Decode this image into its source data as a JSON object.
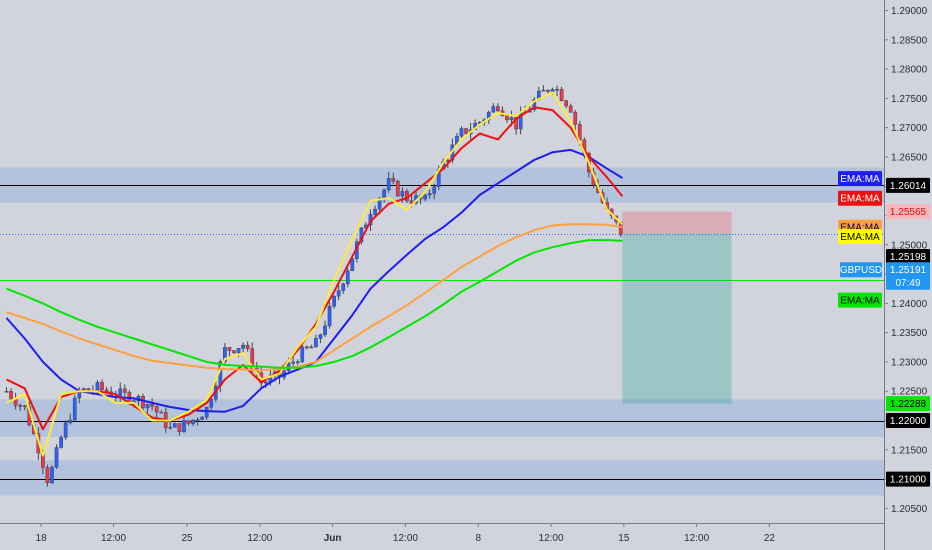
{
  "chart_data": {
    "type": "candlestick",
    "symbol": "GBPUSD",
    "y_range": [
      1.2025,
      1.2918
    ],
    "y_ticks": [
      "1.29000",
      "1.28500",
      "1.28000",
      "1.27500",
      "1.27000",
      "1.26500",
      "1.26000",
      "1.25500",
      "1.25000",
      "1.24500",
      "1.24000",
      "1.23500",
      "1.23000",
      "1.22500",
      "1.22000",
      "1.21500",
      "1.21000",
      "1.20500"
    ],
    "x_ticks": [
      "18",
      "12:00",
      "25",
      "12:00",
      "Jun",
      "12:00",
      "8",
      "12:00",
      "15",
      "12:00",
      "22"
    ],
    "x_tick_sessions": [
      0.95,
      2.94,
      4.96,
      6.96,
      8.96,
      10.96,
      12.96,
      14.96,
      16.96,
      18.96,
      20.96
    ],
    "last_session": 16.96,
    "horizontal_levels": [
      {
        "price": 1.26014,
        "label": "1.26014",
        "color": "#000000",
        "style": "solid"
      },
      {
        "price": 1.22,
        "label": "1.22000",
        "color": "#000000",
        "style": "solid"
      },
      {
        "price": 1.21,
        "label": "1.21000",
        "color": "#000000",
        "style": "solid"
      },
      {
        "price": 1.244,
        "label": "",
        "color": "#00e600",
        "style": "solid"
      },
      {
        "price": 1.25191,
        "label": "",
        "color": "#2962ff",
        "style": "dotted"
      }
    ],
    "zones": [
      {
        "from": 1.2572,
        "to": 1.2632
      },
      {
        "from": 1.2172,
        "to": 1.2236
      },
      {
        "from": 1.2072,
        "to": 1.2132
      }
    ],
    "position": {
      "entry": 1.25191,
      "stop": 1.25565,
      "target": 1.22288,
      "start_session": 16.92,
      "end_session": 19.92,
      "risk_color": "#f23645",
      "reward_color": "#089981"
    },
    "price_labels": [
      {
        "text": "EMA:MA",
        "price": 1.2613,
        "bg": "#1e1ef0",
        "fg": "#ffffff"
      },
      {
        "text": "1.26014",
        "price": 1.26014,
        "bg": "#000000",
        "fg": "#ffffff"
      },
      {
        "text": "EMA:MA",
        "price": 1.25795,
        "bg": "#ee1111",
        "fg": "#ffffff"
      },
      {
        "text": "1.25565",
        "price": 1.25565,
        "bg": "#f7b6bc",
        "fg": "#d01010"
      },
      {
        "text": "EMA:MA",
        "price": 1.253,
        "bg": "#ffa040",
        "fg": "#000000"
      },
      {
        "text": "EMA:MA",
        "price": 1.2514,
        "bg": "#ffff00",
        "fg": "#000000"
      },
      {
        "text": "1.25198",
        "price": 1.248,
        "bg": "#000000",
        "fg": "#ffffff"
      },
      {
        "text": "GBPUSD",
        "price": 1.24575,
        "bg": "#2196f3",
        "fg": "#ffffff"
      },
      {
        "text": "1.25191",
        "price": 1.24575,
        "bg": "#2196f3",
        "fg": "#ffffff"
      },
      {
        "text": "07:49",
        "price": 1.2436,
        "bg": "#2196f3",
        "fg": "#ffffff"
      },
      {
        "text": "EMA:MA",
        "price": 1.24055,
        "bg": "#00e600",
        "fg": "#000000"
      },
      {
        "text": "1.22288",
        "price": 1.22288,
        "bg": "#00e600",
        "fg": "#000000"
      },
      {
        "text": "1.22000",
        "price": 1.22,
        "bg": "#000000",
        "fg": "#ffffff"
      },
      {
        "text": "1.21000",
        "price": 1.21,
        "bg": "#000000",
        "fg": "#ffffff"
      }
    ],
    "ema_series": [
      {
        "color": "#1e1ef0",
        "points": [
          [
            0,
            1.2375
          ],
          [
            0.5,
            1.234
          ],
          [
            1,
            1.23
          ],
          [
            1.5,
            1.227
          ],
          [
            2,
            1.225
          ],
          [
            2.5,
            1.2245
          ],
          [
            3,
            1.224
          ],
          [
            3.5,
            1.2238
          ],
          [
            4,
            1.223
          ],
          [
            4.5,
            1.2223
          ],
          [
            5,
            1.2218
          ],
          [
            5.5,
            1.2216
          ],
          [
            6,
            1.2215
          ],
          [
            6.5,
            1.2225
          ],
          [
            7,
            1.2255
          ],
          [
            7.5,
            1.2275
          ],
          [
            8,
            1.2287
          ],
          [
            8.5,
            1.23
          ],
          [
            9,
            1.234
          ],
          [
            9.5,
            1.238
          ],
          [
            10,
            1.2425
          ],
          [
            10.5,
            1.2455
          ],
          [
            11,
            1.2483
          ],
          [
            11.5,
            1.251
          ],
          [
            12,
            1.253
          ],
          [
            12.5,
            1.2555
          ],
          [
            13,
            1.2585
          ],
          [
            13.5,
            1.2605
          ],
          [
            14,
            1.2625
          ],
          [
            14.5,
            1.2645
          ],
          [
            15,
            1.2658
          ],
          [
            15.5,
            1.2662
          ],
          [
            16,
            1.265
          ],
          [
            16.5,
            1.263
          ],
          [
            16.92,
            1.2614
          ]
        ]
      },
      {
        "color": "#ee1111",
        "points": [
          [
            0,
            1.227
          ],
          [
            0.5,
            1.2255
          ],
          [
            1,
            1.2185
          ],
          [
            1.5,
            1.224
          ],
          [
            2,
            1.225
          ],
          [
            2.5,
            1.225
          ],
          [
            3,
            1.2245
          ],
          [
            3.5,
            1.2225
          ],
          [
            4,
            1.2205
          ],
          [
            4.5,
            1.22
          ],
          [
            5,
            1.221
          ],
          [
            5.5,
            1.223
          ],
          [
            6,
            1.227
          ],
          [
            6.5,
            1.2295
          ],
          [
            7,
            1.2265
          ],
          [
            7.5,
            1.2285
          ],
          [
            8,
            1.232
          ],
          [
            8.5,
            1.2365
          ],
          [
            9,
            1.242
          ],
          [
            9.5,
            1.248
          ],
          [
            10,
            1.254
          ],
          [
            10.5,
            1.257
          ],
          [
            11,
            1.258
          ],
          [
            11.5,
            1.2605
          ],
          [
            12,
            1.263
          ],
          [
            12.5,
            1.2665
          ],
          [
            13,
            1.269
          ],
          [
            13.5,
            1.268
          ],
          [
            14,
            1.2715
          ],
          [
            14.5,
            1.2735
          ],
          [
            15,
            1.273
          ],
          [
            15.5,
            1.27
          ],
          [
            16,
            1.265
          ],
          [
            16.5,
            1.2615
          ],
          [
            16.92,
            1.2583
          ]
        ]
      },
      {
        "color": "#ffeb3b",
        "points": [
          [
            0,
            1.223
          ],
          [
            0.5,
            1.2245
          ],
          [
            1,
            1.214
          ],
          [
            1.5,
            1.2245
          ],
          [
            2,
            1.225
          ],
          [
            2.5,
            1.225
          ],
          [
            3,
            1.223
          ],
          [
            3.5,
            1.223
          ],
          [
            4,
            1.22
          ],
          [
            4.5,
            1.22
          ],
          [
            5,
            1.2215
          ],
          [
            5.5,
            1.2235
          ],
          [
            6,
            1.2305
          ],
          [
            6.5,
            1.2315
          ],
          [
            7,
            1.227
          ],
          [
            7.5,
            1.228
          ],
          [
            8,
            1.2325
          ],
          [
            8.5,
            1.236
          ],
          [
            9,
            1.244
          ],
          [
            9.5,
            1.251
          ],
          [
            10,
            1.2575
          ],
          [
            10.5,
            1.258
          ],
          [
            11,
            1.256
          ],
          [
            11.5,
            1.259
          ],
          [
            12,
            1.264
          ],
          [
            12.5,
            1.268
          ],
          [
            13,
            1.2705
          ],
          [
            13.5,
            1.2725
          ],
          [
            14,
            1.272
          ],
          [
            14.5,
            1.2745
          ],
          [
            15,
            1.276
          ],
          [
            15.5,
            1.271
          ],
          [
            16,
            1.264
          ],
          [
            16.5,
            1.256
          ],
          [
            16.92,
            1.2535
          ]
        ]
      },
      {
        "color": "#ffa040",
        "points": [
          [
            0,
            1.2385
          ],
          [
            0.5,
            1.2375
          ],
          [
            1,
            1.2365
          ],
          [
            1.5,
            1.2352
          ],
          [
            2,
            1.234
          ],
          [
            2.5,
            1.233
          ],
          [
            3,
            1.232
          ],
          [
            3.5,
            1.231
          ],
          [
            4,
            1.2302
          ],
          [
            4.5,
            1.2298
          ],
          [
            5,
            1.2294
          ],
          [
            5.5,
            1.229
          ],
          [
            6,
            1.2288
          ],
          [
            6.5,
            1.2287
          ],
          [
            7,
            1.2286
          ],
          [
            7.5,
            1.2288
          ],
          [
            8,
            1.2292
          ],
          [
            8.5,
            1.23
          ],
          [
            9,
            1.232
          ],
          [
            9.5,
            1.234
          ],
          [
            10,
            1.236
          ],
          [
            10.5,
            1.2378
          ],
          [
            11,
            1.2397
          ],
          [
            11.5,
            1.2418
          ],
          [
            12,
            1.244
          ],
          [
            12.5,
            1.2462
          ],
          [
            13,
            1.248
          ],
          [
            13.5,
            1.2498
          ],
          [
            14,
            1.2513
          ],
          [
            14.5,
            1.2525
          ],
          [
            15,
            1.2533
          ],
          [
            15.5,
            1.2535
          ],
          [
            16,
            1.2535
          ],
          [
            16.5,
            1.2534
          ],
          [
            16.92,
            1.253
          ]
        ]
      },
      {
        "color": "#00e600",
        "points": [
          [
            0,
            1.2425
          ],
          [
            0.5,
            1.2413
          ],
          [
            1,
            1.24
          ],
          [
            1.5,
            1.2385
          ],
          [
            2,
            1.2372
          ],
          [
            2.5,
            1.236
          ],
          [
            3,
            1.235
          ],
          [
            3.5,
            1.234
          ],
          [
            4,
            1.233
          ],
          [
            4.5,
            1.232
          ],
          [
            5,
            1.231
          ],
          [
            5.5,
            1.23
          ],
          [
            6,
            1.2295
          ],
          [
            6.5,
            1.2293
          ],
          [
            7,
            1.2292
          ],
          [
            7.5,
            1.229
          ],
          [
            8,
            1.229
          ],
          [
            8.5,
            1.2293
          ],
          [
            9,
            1.23
          ],
          [
            9.5,
            1.231
          ],
          [
            10,
            1.2325
          ],
          [
            10.5,
            1.2342
          ],
          [
            11,
            1.236
          ],
          [
            11.5,
            1.2378
          ],
          [
            12,
            1.2398
          ],
          [
            12.5,
            1.242
          ],
          [
            13,
            1.2437
          ],
          [
            13.5,
            1.2455
          ],
          [
            14,
            1.2473
          ],
          [
            14.5,
            1.2487
          ],
          [
            15,
            1.2496
          ],
          [
            15.5,
            1.2503
          ],
          [
            16,
            1.2508
          ],
          [
            16.5,
            1.2508
          ],
          [
            16.92,
            1.2507
          ]
        ]
      }
    ],
    "candle_path": [
      [
        0,
        1.225
      ],
      [
        0.5,
        1.222
      ],
      [
        0.9,
        1.215
      ],
      [
        1.15,
        1.2095
      ],
      [
        1.5,
        1.217
      ],
      [
        2,
        1.225
      ],
      [
        2.5,
        1.2255
      ],
      [
        3,
        1.2245
      ],
      [
        3.5,
        1.224
      ],
      [
        4,
        1.2225
      ],
      [
        4.5,
        1.2185
      ],
      [
        5,
        1.2195
      ],
      [
        5.5,
        1.222
      ],
      [
        6,
        1.232
      ],
      [
        6.5,
        1.233
      ],
      [
        7,
        1.2265
      ],
      [
        7.5,
        1.2275
      ],
      [
        8,
        1.231
      ],
      [
        8.5,
        1.233
      ],
      [
        9,
        1.2405
      ],
      [
        9.5,
        1.248
      ],
      [
        10,
        1.256
      ],
      [
        10.5,
        1.2605
      ],
      [
        11,
        1.258
      ],
      [
        11.5,
        1.2575
      ],
      [
        12,
        1.264
      ],
      [
        12.5,
        1.269
      ],
      [
        13,
        1.271
      ],
      [
        13.5,
        1.274
      ],
      [
        14,
        1.2705
      ],
      [
        14.5,
        1.2745
      ],
      [
        15,
        1.2775
      ],
      [
        15.5,
        1.2735
      ],
      [
        16,
        1.2625
      ],
      [
        16.5,
        1.2555
      ],
      [
        16.92,
        1.2519
      ]
    ]
  }
}
